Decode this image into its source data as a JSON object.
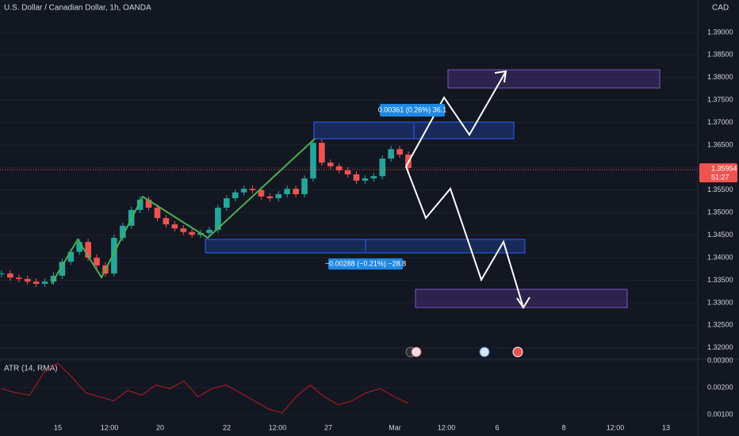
{
  "chart_data": [
    {
      "type": "candlestick",
      "title": "U.S. Dollar / Canadian Dollar, 1h, OANDA",
      "currency": "CAD",
      "values": [
        1.3365,
        1.3356,
        1.3353,
        1.3347,
        1.3342,
        1.3347,
        1.336,
        1.3391,
        1.3413,
        1.3435,
        1.34,
        1.3383,
        1.3365,
        1.3444,
        1.3471,
        1.3506,
        1.3529,
        1.3511,
        1.3488,
        1.3474,
        1.3465,
        1.3457,
        1.3451,
        1.3455,
        1.3462,
        1.3511,
        1.3532,
        1.3545,
        1.3553,
        1.355,
        1.3536,
        1.3532,
        1.3541,
        1.3553,
        1.3541,
        1.3576,
        1.3655,
        1.3611,
        1.3603,
        1.3594,
        1.3585,
        1.3571,
        1.3576,
        1.3581,
        1.362,
        1.3641,
        1.3629,
        1.3599
      ],
      "up_color": "#26a69a",
      "down_color": "#ef5350",
      "ylim": [
        1.3175,
        1.3972
      ],
      "yticks": [
        {
          "value": 1.32,
          "label": "1.32000"
        },
        {
          "value": 1.325,
          "label": "1.32500"
        },
        {
          "value": 1.33,
          "label": "1.33000"
        },
        {
          "value": 1.335,
          "label": "1.33500"
        },
        {
          "value": 1.34,
          "label": "1.34000"
        },
        {
          "value": 1.345,
          "label": "1.34500"
        },
        {
          "value": 1.35,
          "label": "1.35000"
        },
        {
          "value": 1.355,
          "label": "1.35500"
        },
        {
          "value": 1.36,
          "label": "1.36000"
        },
        {
          "value": 1.365,
          "label": "1.36500"
        },
        {
          "value": 1.37,
          "label": "1.37000"
        },
        {
          "value": 1.375,
          "label": "1.37500"
        },
        {
          "value": 1.38,
          "label": "1.38000"
        },
        {
          "value": 1.385,
          "label": "1.38500"
        },
        {
          "value": 1.39,
          "label": "1.39000"
        }
      ],
      "current_price": {
        "value": 1.35954,
        "label": "1.35954"
      },
      "countdown": "51:27",
      "xticks": [
        "15",
        "12:00",
        "20",
        "22",
        "12:00",
        "27",
        "Mar",
        "12:00",
        "6",
        "8",
        "12:00",
        "13"
      ],
      "annotations": [
        "0.00361 (0.26%) 36.1",
        "−0.00288 (−0.21%) −28.8"
      ]
    },
    {
      "type": "line",
      "title": "ATR (14, RMA)",
      "color": "#b71c1c",
      "values": [
        0.00196,
        0.00181,
        0.00172,
        0.00255,
        0.00291,
        0.0024,
        0.00181,
        0.00166,
        0.00151,
        0.0019,
        0.00172,
        0.0021,
        0.00196,
        0.00225,
        0.00166,
        0.00196,
        0.0021,
        0.00181,
        0.00151,
        0.00121,
        0.00106,
        0.00166,
        0.0021,
        0.00166,
        0.00136,
        0.00151,
        0.00181,
        0.00196,
        0.00166,
        0.00142
      ],
      "ylim": [
        0.00079,
        0.00306
      ],
      "yticks": [
        {
          "value": 0.001,
          "label": "0.00100"
        },
        {
          "value": 0.002,
          "label": "0.00200"
        },
        {
          "value": 0.003,
          "label": "0.00300"
        }
      ]
    }
  ]
}
